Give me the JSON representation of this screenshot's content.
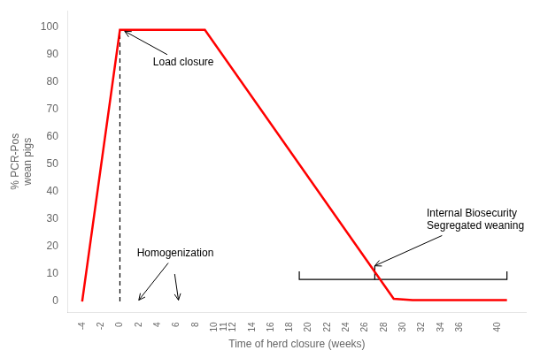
{
  "chart_data": {
    "type": "line",
    "series": [
      {
        "color": "#FF0000",
        "x": [
          -4,
          0,
          8,
          9,
          29,
          31,
          41
        ],
        "values": [
          0,
          99,
          99,
          99,
          1,
          0.5,
          0.5
        ]
      },
      {
        "color": "black",
        "line_style": "dashed",
        "x": [
          0,
          0
        ],
        "values": [
          0,
          99
        ]
      },
      {
        "color": "black",
        "x": [
          19,
          19,
          41,
          41
        ],
        "values": [
          11,
          8,
          8,
          11
        ]
      },
      {
        "color": "black",
        "x": [
          27,
          27
        ],
        "values": [
          8,
          13
        ]
      }
    ],
    "xlabel": "Time of herd closure (weeks)",
    "ylabel": "% PCR-Pos\nwean pigs",
    "xlim": [
      -5.5,
      43
    ],
    "ylim": [
      -4,
      106
    ],
    "xticks": [
      -4,
      -2,
      0,
      2,
      4,
      6,
      8,
      10,
      11,
      12,
      14,
      16,
      18,
      20,
      22,
      24,
      26,
      28,
      30,
      32,
      34,
      36,
      40
    ],
    "yticks": [
      0,
      10,
      20,
      30,
      40,
      50,
      60,
      70,
      80,
      90,
      100
    ],
    "grid": false,
    "annotations": [
      {
        "text": "Load closure",
        "x": 3.5,
        "y": 89,
        "arrow_to": [
          0.5,
          98.5
        ]
      },
      {
        "text": "Homogenization",
        "x": 1.8,
        "y": 15,
        "arrow_to": [
          2.0,
          0.5
        ]
      },
      {
        "text": "Internal Biosecurity\nSegregated weaning",
        "x": 32.5,
        "y": 25,
        "arrow_to": [
          27,
          13
        ]
      }
    ],
    "arrows": [
      {
        "from": [
          5.8,
          10
        ],
        "to": [
          6.2,
          0.5
        ]
      }
    ]
  }
}
